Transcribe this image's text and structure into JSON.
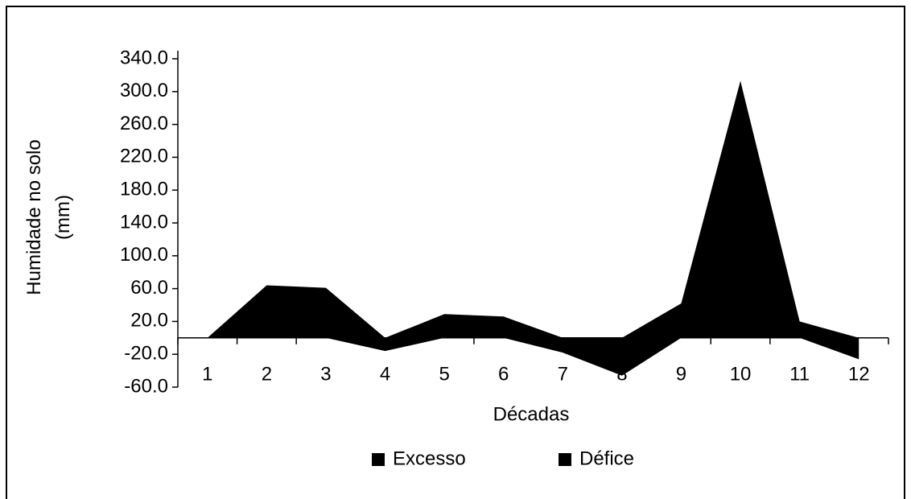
{
  "chart_data": {
    "type": "area",
    "xlabel": "Décadas",
    "ylabel": "Humidade no solo (mm)",
    "categories": [
      "1",
      "2",
      "3",
      "4",
      "5",
      "6",
      "7",
      "8",
      "9",
      "10",
      "11",
      "12"
    ],
    "series": [
      {
        "name": "Excesso",
        "color": "#000000",
        "values": [
          0,
          64,
          61,
          0,
          29,
          26,
          0,
          0,
          42,
          313,
          20,
          0
        ]
      },
      {
        "name": "Défice",
        "color": "#000000",
        "values": [
          0,
          0,
          0,
          -16,
          0,
          0,
          -18,
          -46,
          0,
          0,
          0,
          -26
        ]
      }
    ],
    "ylim": [
      -60,
      340
    ],
    "yticks": [
      {
        "value": -60,
        "label": "-60.0"
      },
      {
        "value": -20,
        "label": "-20.0"
      },
      {
        "value": 20,
        "label": "20.0"
      },
      {
        "value": 60,
        "label": "60.0"
      },
      {
        "value": 100,
        "label": "100.0"
      },
      {
        "value": 140,
        "label": "140.0"
      },
      {
        "value": 180,
        "label": "180.0"
      },
      {
        "value": 220,
        "label": "220.0"
      },
      {
        "value": 260,
        "label": "260.0"
      },
      {
        "value": 300,
        "label": "300.0"
      },
      {
        "value": 340,
        "label": "340.0"
      }
    ],
    "grid": false,
    "legend": "bottom"
  }
}
